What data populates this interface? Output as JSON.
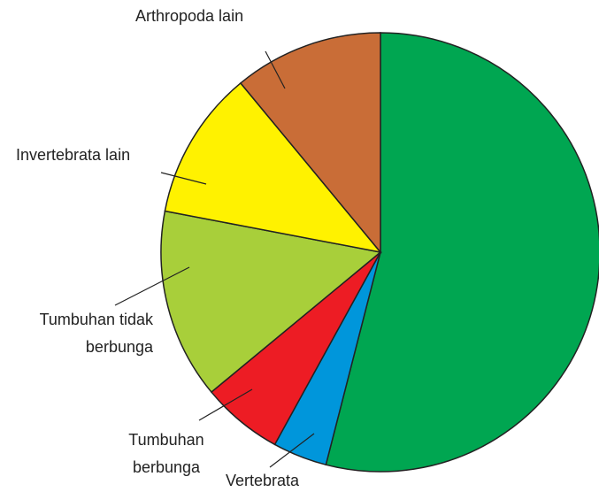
{
  "chart_data": {
    "type": "pie",
    "categories": [
      null,
      "Vertebrata",
      "Tumbuhan berbunga",
      "Tumbuhan tidak berbunga",
      "Invertebrata lain",
      "Arthropoda lain"
    ],
    "values": [
      54,
      4,
      6,
      14,
      11,
      11
    ],
    "colors": [
      "#00a651",
      "#0096db",
      "#ed1c24",
      "#a8cf3a",
      "#fff200",
      "#c96d37"
    ]
  }
}
